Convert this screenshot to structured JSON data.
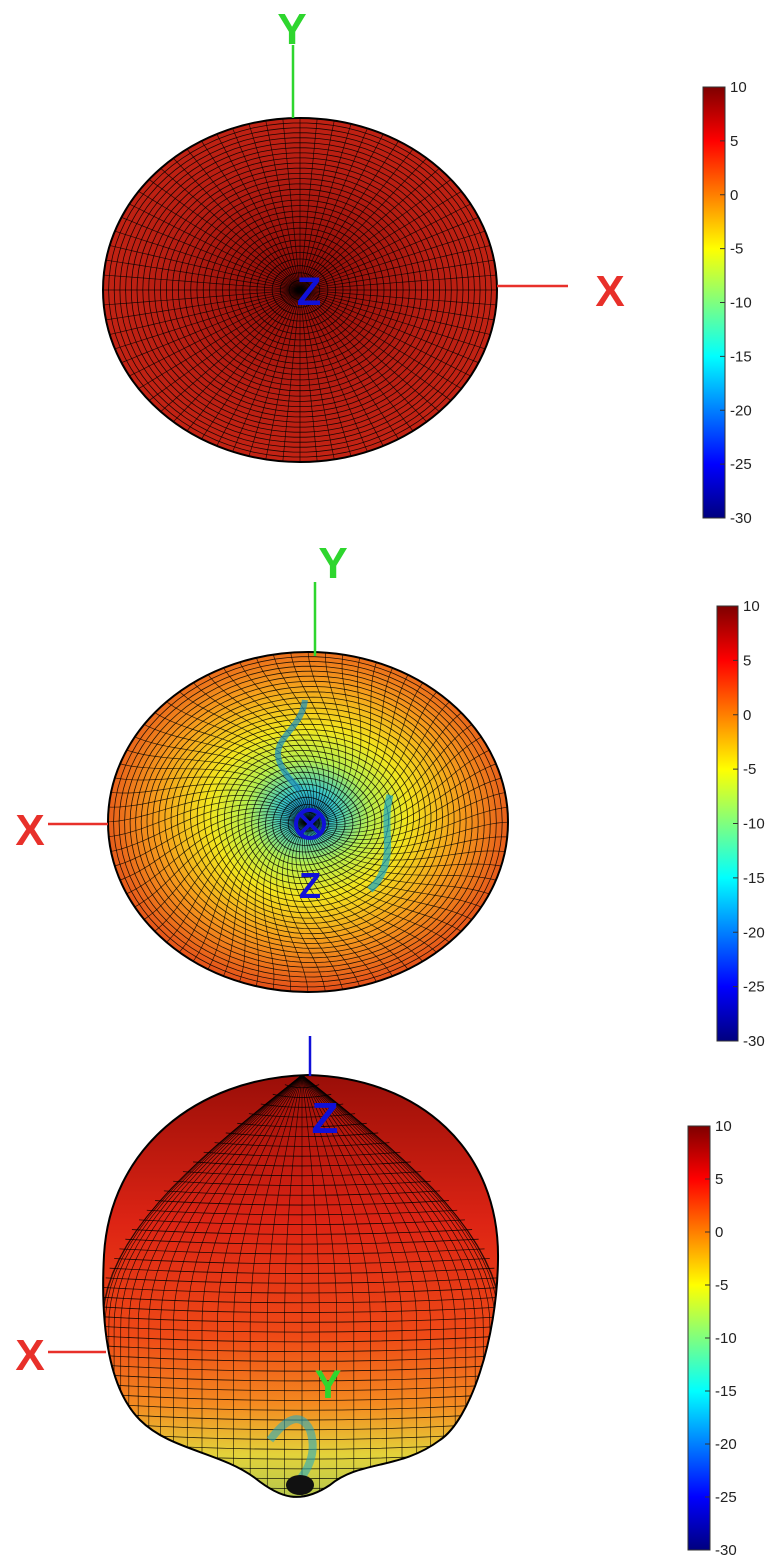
{
  "colors": {
    "x_axis": "#e8302a",
    "y_axis": "#2ed62e",
    "z_axis": "#1010d8",
    "mesh": "#000000"
  },
  "colorbar": {
    "ticks": [
      10,
      5,
      0,
      -5,
      -10,
      -15,
      -20,
      -25,
      -30
    ],
    "min": -30,
    "max": 10,
    "colormap": "jet"
  },
  "panels": [
    {
      "view": "top",
      "labels": {
        "x": "X",
        "y": "Y",
        "z": "Z"
      },
      "colorbar_ticks": [
        "10",
        "5",
        "0",
        "-5",
        "-10",
        "-15",
        "-20",
        "-25",
        "-30"
      ]
    },
    {
      "view": "bottom",
      "labels": {
        "x": "X",
        "y": "Y",
        "z": "Z"
      },
      "colorbar_ticks": [
        "10",
        "5",
        "0",
        "-5",
        "-10",
        "-15",
        "-20",
        "-25",
        "-30"
      ]
    },
    {
      "view": "side",
      "labels": {
        "x": "X",
        "y": "Y",
        "z": "Z"
      },
      "colorbar_ticks": [
        "10",
        "5",
        "0",
        "-5",
        "-10",
        "-15",
        "-20",
        "-25",
        "-30"
      ]
    }
  ]
}
